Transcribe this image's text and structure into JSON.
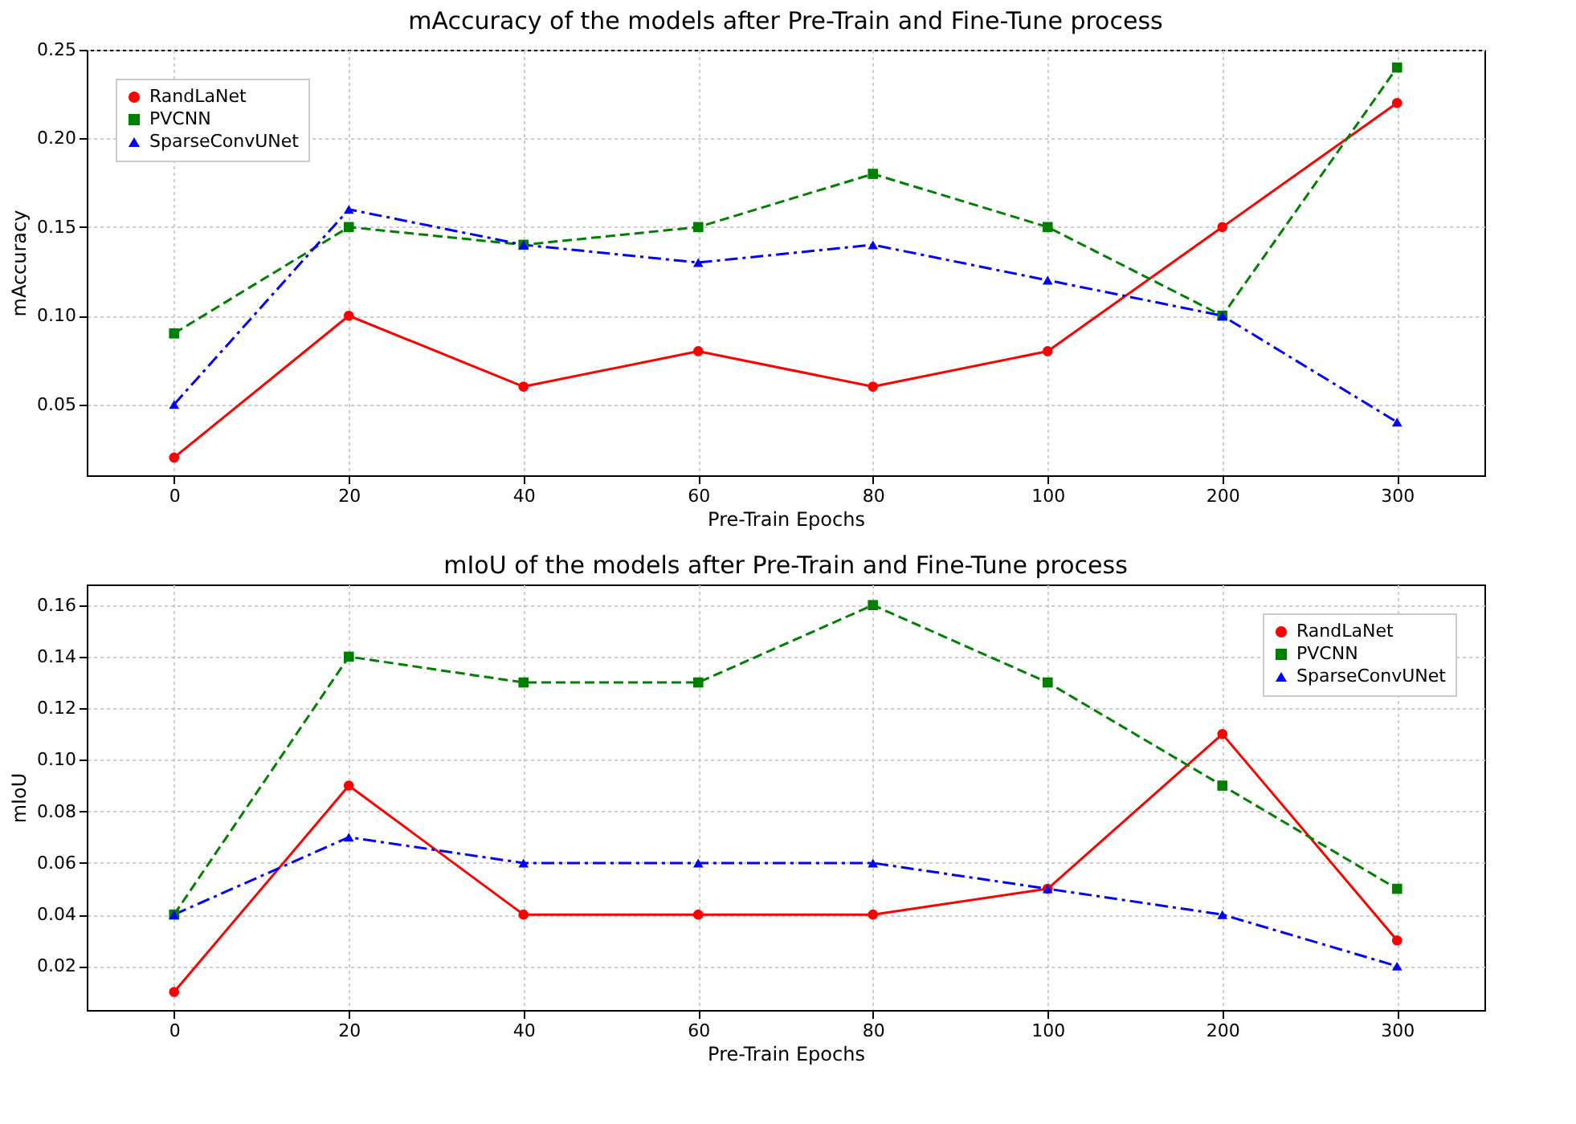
{
  "chart_data": [
    {
      "type": "line",
      "title": "mAccuracy of the models after Pre-Train and Fine-Tune process",
      "xlabel": "Pre-Train Epochs",
      "ylabel": "mAccuracy",
      "categories": [
        "0",
        "20",
        "40",
        "60",
        "80",
        "100",
        "200",
        "300"
      ],
      "series": [
        {
          "name": "RandLaNet",
          "color": "#ff0000",
          "marker": "circle",
          "line_style": "solid",
          "values": [
            0.02,
            0.1,
            0.06,
            0.08,
            0.06,
            0.08,
            0.15,
            0.22
          ]
        },
        {
          "name": "PVCNN",
          "color": "#008000",
          "marker": "square",
          "line_style": "dashed",
          "values": [
            0.09,
            0.15,
            0.14,
            0.15,
            0.18,
            0.15,
            0.1,
            0.24
          ]
        },
        {
          "name": "SparseConvUNet",
          "color": "#0000ff",
          "marker": "triangle",
          "line_style": "dashdot",
          "values": [
            0.05,
            0.16,
            0.14,
            0.13,
            0.14,
            0.12,
            0.1,
            0.04
          ]
        }
      ],
      "ylim": [
        0.01,
        0.25
      ],
      "yticks": [
        {
          "value": 0.05,
          "label": "0.05"
        },
        {
          "value": 0.1,
          "label": "0.10"
        },
        {
          "value": 0.15,
          "label": "0.15"
        },
        {
          "value": 0.2,
          "label": "0.20"
        },
        {
          "value": 0.25,
          "label": "0.25"
        }
      ],
      "grid": true,
      "legend": "top left"
    },
    {
      "type": "line",
      "title": "mIoU of the models after Pre-Train and Fine-Tune process",
      "xlabel": "Pre-Train Epochs",
      "ylabel": "mIoU",
      "categories": [
        "0",
        "20",
        "40",
        "60",
        "80",
        "100",
        "200",
        "300"
      ],
      "series": [
        {
          "name": "RandLaNet",
          "color": "#ff0000",
          "marker": "circle",
          "line_style": "solid",
          "values": [
            0.01,
            0.09,
            0.04,
            0.04,
            0.04,
            0.05,
            0.11,
            0.03
          ]
        },
        {
          "name": "PVCNN",
          "color": "#008000",
          "marker": "square",
          "line_style": "dashed",
          "values": [
            0.04,
            0.14,
            0.13,
            0.13,
            0.16,
            0.13,
            0.09,
            0.05
          ]
        },
        {
          "name": "SparseConvUNet",
          "color": "#0000ff",
          "marker": "triangle",
          "line_style": "dashdot",
          "values": [
            0.04,
            0.07,
            0.06,
            0.06,
            0.06,
            0.05,
            0.04,
            0.02
          ]
        }
      ],
      "ylim": [
        0.003,
        0.168
      ],
      "yticks": [
        {
          "value": 0.02,
          "label": "0.02"
        },
        {
          "value": 0.04,
          "label": "0.04"
        },
        {
          "value": 0.06,
          "label": "0.06"
        },
        {
          "value": 0.08,
          "label": "0.08"
        },
        {
          "value": 0.1,
          "label": "0.10"
        },
        {
          "value": 0.12,
          "label": "0.12"
        },
        {
          "value": 0.14,
          "label": "0.14"
        },
        {
          "value": 0.16,
          "label": "0.16"
        }
      ],
      "grid": true,
      "legend": "top right"
    }
  ]
}
